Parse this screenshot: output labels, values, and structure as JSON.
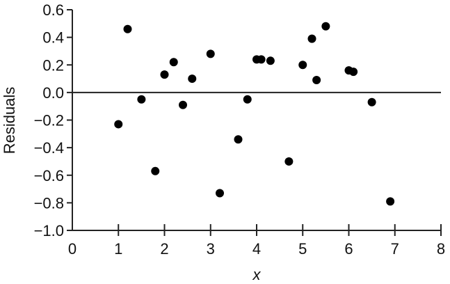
{
  "chart_data": {
    "type": "scatter",
    "title": "",
    "xlabel": "x",
    "ylabel": "Residuals",
    "xlim": [
      0,
      8
    ],
    "ylim": [
      -1.0,
      0.6
    ],
    "xticks": [
      "0",
      "1",
      "2",
      "3",
      "4",
      "5",
      "6",
      "7",
      "8"
    ],
    "yticks": [
      "0.6",
      "0.4",
      "0.2",
      "0.0",
      "−0.2",
      "−0.4",
      "−0.6",
      "−0.8",
      "−1.0"
    ],
    "ytick_values": [
      0.6,
      0.4,
      0.2,
      0.0,
      -0.2,
      -0.4,
      -0.6,
      -0.8,
      -1.0
    ],
    "reference_line_y": 0.0,
    "grid": false,
    "marker_color": "#000000",
    "points": [
      {
        "x": 1.0,
        "y": -0.23
      },
      {
        "x": 1.2,
        "y": 0.46
      },
      {
        "x": 1.5,
        "y": -0.05
      },
      {
        "x": 1.8,
        "y": -0.57
      },
      {
        "x": 2.0,
        "y": 0.13
      },
      {
        "x": 2.2,
        "y": 0.22
      },
      {
        "x": 2.4,
        "y": -0.09
      },
      {
        "x": 2.6,
        "y": 0.1
      },
      {
        "x": 3.0,
        "y": 0.28
      },
      {
        "x": 3.2,
        "y": -0.73
      },
      {
        "x": 3.6,
        "y": -0.34
      },
      {
        "x": 3.8,
        "y": -0.05
      },
      {
        "x": 4.0,
        "y": 0.24
      },
      {
        "x": 4.1,
        "y": 0.24
      },
      {
        "x": 4.3,
        "y": 0.23
      },
      {
        "x": 4.7,
        "y": -0.5
      },
      {
        "x": 5.0,
        "y": 0.2
      },
      {
        "x": 5.2,
        "y": 0.39
      },
      {
        "x": 5.3,
        "y": 0.09
      },
      {
        "x": 5.5,
        "y": 0.48
      },
      {
        "x": 6.0,
        "y": 0.16
      },
      {
        "x": 6.1,
        "y": 0.15
      },
      {
        "x": 6.5,
        "y": -0.07
      },
      {
        "x": 6.9,
        "y": -0.79
      }
    ]
  }
}
